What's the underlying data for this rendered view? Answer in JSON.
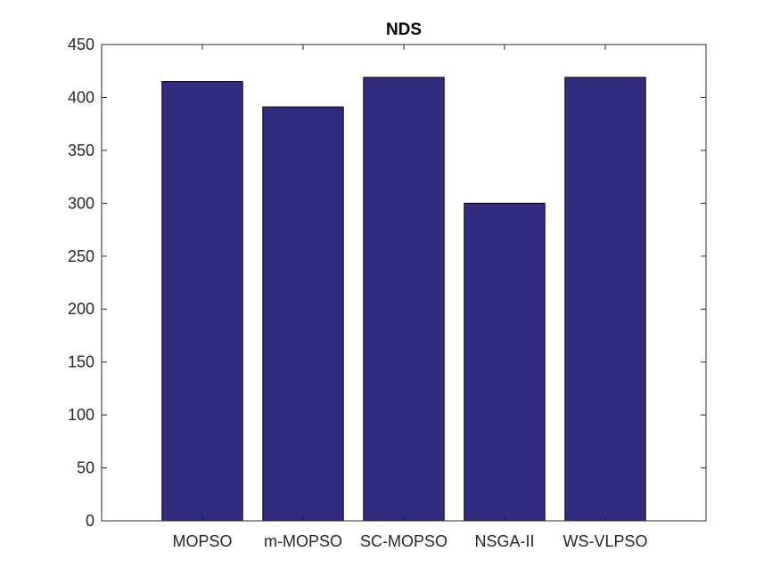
{
  "chart_data": {
    "type": "bar",
    "title": "NDS",
    "xlabel": "",
    "ylabel": "",
    "categories": [
      "MOPSO",
      "m-MOPSO",
      "SC-MOPSO",
      "NSGA-II",
      "WS-VLPSO"
    ],
    "values": [
      415,
      391,
      419,
      300,
      419
    ],
    "ylim": [
      0,
      450
    ],
    "yticks": [
      0,
      50,
      100,
      150,
      200,
      250,
      300,
      350,
      400,
      450
    ],
    "grid": false,
    "legend": "none",
    "bar_color": "#332b80",
    "edge_color": "#000000"
  }
}
